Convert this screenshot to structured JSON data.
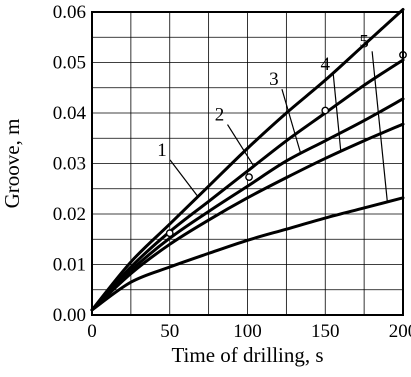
{
  "chart_data": {
    "type": "line",
    "title": "",
    "xlabel": "Time of drilling, s",
    "ylabel": "Groove, m",
    "xlim": [
      0,
      200
    ],
    "ylim": [
      0,
      0.06
    ],
    "xticks": [
      0,
      50,
      100,
      150,
      200
    ],
    "xtick_labels": [
      "0",
      "50",
      "100",
      "150",
      "200"
    ],
    "yticks": [
      0,
      0.01,
      0.02,
      0.03,
      0.04,
      0.05,
      0.06
    ],
    "ytick_labels": [
      "0.00",
      "0.01",
      "0.02",
      "0.03",
      "0.04",
      "0.05",
      "0.06"
    ],
    "grid": true,
    "x": [
      0,
      25,
      50,
      75,
      100,
      125,
      150,
      175,
      200
    ],
    "series": [
      {
        "name": "1",
        "values": [
          0.001,
          0.0105,
          0.018,
          0.0255,
          0.033,
          0.04,
          0.0465,
          0.0535,
          0.0605
        ]
      },
      {
        "name": "2",
        "values": [
          0.001,
          0.0095,
          0.0165,
          0.0225,
          0.0285,
          0.0345,
          0.04,
          0.0455,
          0.0505
        ]
      },
      {
        "name": "3",
        "values": [
          0.001,
          0.0088,
          0.0152,
          0.0205,
          0.0255,
          0.0305,
          0.0345,
          0.0385,
          0.0428
        ]
      },
      {
        "name": "4",
        "values": [
          0.001,
          0.0082,
          0.014,
          0.0188,
          0.0232,
          0.0272,
          0.031,
          0.0345,
          0.0378
        ]
      },
      {
        "name": "5",
        "values": [
          0.001,
          0.0065,
          0.0095,
          0.0122,
          0.0148,
          0.017,
          0.0192,
          0.0212,
          0.0232
        ]
      }
    ],
    "annotations": [
      {
        "text": "1",
        "target_series": 0,
        "label_x": 45,
        "label_y": 0.0315,
        "target_x": 68,
        "target_y": 0.0235
      },
      {
        "text": "2",
        "target_series": 1,
        "label_x": 82,
        "label_y": 0.0385,
        "target_x": 104,
        "target_y": 0.0295
      },
      {
        "text": "3",
        "target_series": 2,
        "label_x": 117,
        "label_y": 0.0455,
        "target_x": 134,
        "target_y": 0.0322
      },
      {
        "text": "4",
        "target_series": 3,
        "label_x": 150,
        "label_y": 0.0485,
        "target_x": 160,
        "target_y": 0.0324
      },
      {
        "text": "5",
        "target_series": 4,
        "label_x": 175,
        "label_y": 0.053,
        "target_x": 190,
        "target_y": 0.0222
      }
    ],
    "markers": [
      {
        "x": 50,
        "y": 0.0162
      },
      {
        "x": 101,
        "y": 0.0273
      },
      {
        "x": 150,
        "y": 0.0405
      },
      {
        "x": 200,
        "y": 0.0515
      }
    ]
  }
}
